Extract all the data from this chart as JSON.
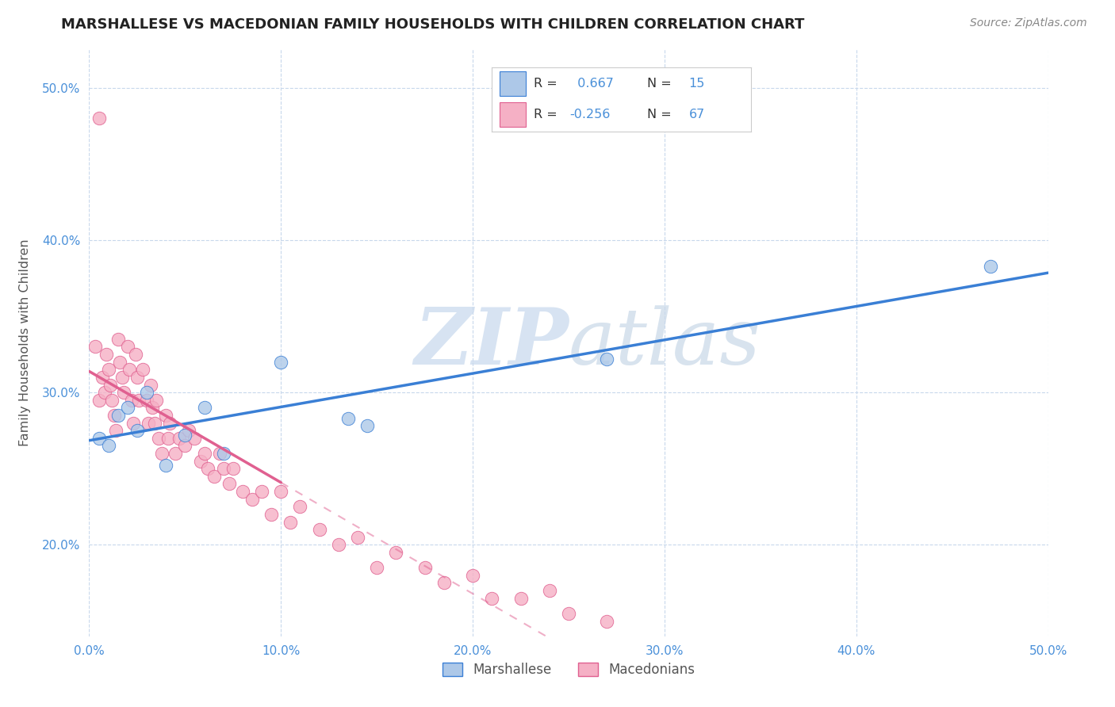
{
  "title": "MARSHALLESE VS MACEDONIAN FAMILY HOUSEHOLDS WITH CHILDREN CORRELATION CHART",
  "source": "Source: ZipAtlas.com",
  "ylabel": "Family Households with Children",
  "xlim": [
    0.0,
    0.5
  ],
  "ylim": [
    0.14,
    0.525
  ],
  "x_ticks": [
    0.0,
    0.1,
    0.2,
    0.3,
    0.4,
    0.5
  ],
  "x_tick_labels": [
    "0.0%",
    "10.0%",
    "20.0%",
    "30.0%",
    "40.0%",
    "50.0%"
  ],
  "y_ticks": [
    0.2,
    0.3,
    0.4,
    0.5
  ],
  "y_tick_labels": [
    "20.0%",
    "30.0%",
    "40.0%",
    "50.0%"
  ],
  "marshallese_R": 0.667,
  "marshallese_N": 15,
  "macedonian_R": -0.256,
  "macedonian_N": 67,
  "marshallese_color": "#adc8e8",
  "macedonian_color": "#f5b0c5",
  "marshallese_line_color": "#3a7fd5",
  "macedonian_line_color": "#e06090",
  "watermark_color": "#d0dff0",
  "marshallese_x": [
    0.005,
    0.01,
    0.015,
    0.02,
    0.025,
    0.03,
    0.04,
    0.05,
    0.06,
    0.07,
    0.1,
    0.135,
    0.145,
    0.27,
    0.47
  ],
  "marshallese_y": [
    0.27,
    0.265,
    0.285,
    0.29,
    0.275,
    0.3,
    0.252,
    0.272,
    0.29,
    0.26,
    0.32,
    0.283,
    0.278,
    0.322,
    0.383
  ],
  "macedonian_x": [
    0.003,
    0.005,
    0.007,
    0.008,
    0.009,
    0.01,
    0.011,
    0.012,
    0.013,
    0.014,
    0.015,
    0.016,
    0.017,
    0.018,
    0.02,
    0.021,
    0.022,
    0.023,
    0.024,
    0.025,
    0.026,
    0.028,
    0.03,
    0.031,
    0.032,
    0.033,
    0.034,
    0.035,
    0.036,
    0.038,
    0.04,
    0.041,
    0.042,
    0.045,
    0.047,
    0.05,
    0.052,
    0.055,
    0.058,
    0.06,
    0.062,
    0.065,
    0.068,
    0.07,
    0.073,
    0.075,
    0.08,
    0.085,
    0.09,
    0.095,
    0.1,
    0.105,
    0.11,
    0.12,
    0.13,
    0.14,
    0.15,
    0.16,
    0.175,
    0.185,
    0.2,
    0.21,
    0.225,
    0.24,
    0.25,
    0.27,
    0.005
  ],
  "macedonian_y": [
    0.33,
    0.295,
    0.31,
    0.3,
    0.325,
    0.315,
    0.305,
    0.295,
    0.285,
    0.275,
    0.335,
    0.32,
    0.31,
    0.3,
    0.33,
    0.315,
    0.295,
    0.28,
    0.325,
    0.31,
    0.295,
    0.315,
    0.295,
    0.28,
    0.305,
    0.29,
    0.28,
    0.295,
    0.27,
    0.26,
    0.285,
    0.27,
    0.28,
    0.26,
    0.27,
    0.265,
    0.275,
    0.27,
    0.255,
    0.26,
    0.25,
    0.245,
    0.26,
    0.25,
    0.24,
    0.25,
    0.235,
    0.23,
    0.235,
    0.22,
    0.235,
    0.215,
    0.225,
    0.21,
    0.2,
    0.205,
    0.185,
    0.195,
    0.185,
    0.175,
    0.18,
    0.165,
    0.165,
    0.17,
    0.155,
    0.15,
    0.48
  ]
}
